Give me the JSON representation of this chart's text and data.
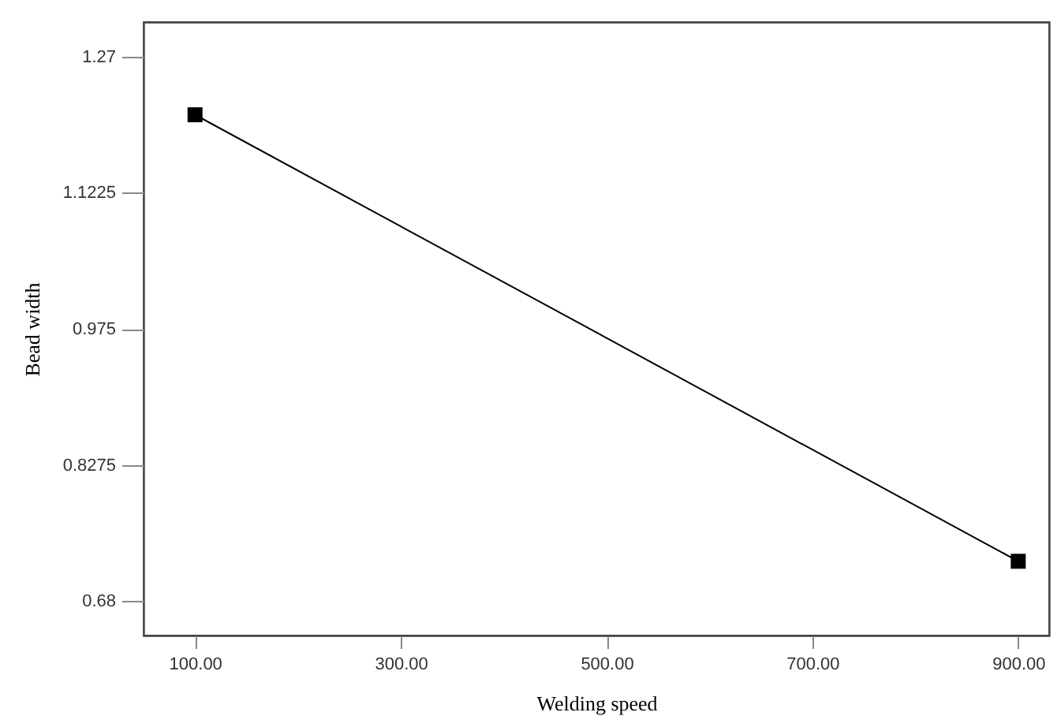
{
  "chart_data": {
    "type": "line",
    "xlabel": "Welding speed",
    "ylabel": "Bead width",
    "x": [
      100,
      900
    ],
    "series": [
      {
        "color": "#000000",
        "values": [
          1.207,
          0.723
        ]
      }
    ],
    "xlim": [
      50,
      930
    ],
    "xticks": [
      {
        "value": 100,
        "label": "100.00"
      },
      {
        "value": 300,
        "label": "300.00"
      },
      {
        "value": 500,
        "label": "500.00"
      },
      {
        "value": 700,
        "label": "700.00"
      },
      {
        "value": 900,
        "label": "900.00"
      }
    ],
    "ylim": [
      0.6425,
      1.3075
    ],
    "yticks": [
      0.68,
      0.8275,
      0.975,
      1.1225,
      1.27
    ],
    "marker": "square",
    "line_style": "solid",
    "grid": false
  }
}
